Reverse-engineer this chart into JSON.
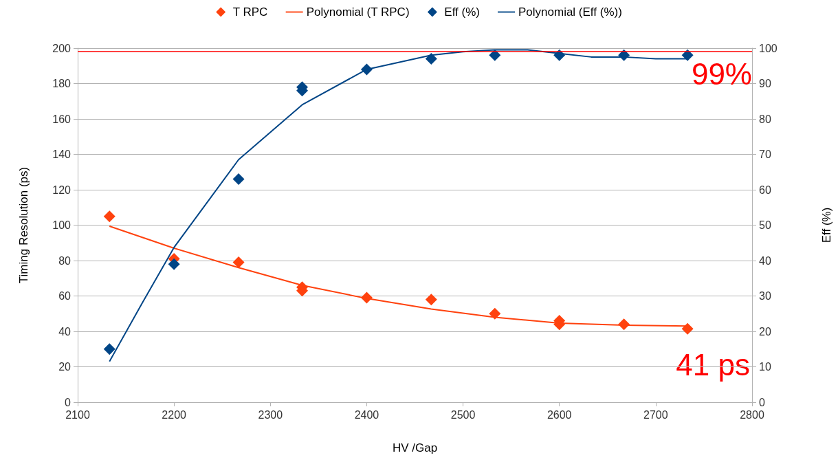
{
  "chart_data": {
    "type": "scatter",
    "xlabel": "HV /Gap",
    "ylabel": "Timing Resolution (ps)",
    "y2label": "Eff (%)",
    "xlim": [
      2100,
      2800
    ],
    "xticks": [
      2100,
      2200,
      2300,
      2400,
      2500,
      2600,
      2700,
      2800
    ],
    "ylim": [
      0,
      200
    ],
    "yticks": [
      0,
      20,
      40,
      60,
      80,
      100,
      120,
      140,
      160,
      180,
      200
    ],
    "y2lim": [
      0,
      100
    ],
    "y2ticks": [
      0,
      10,
      20,
      30,
      40,
      50,
      60,
      70,
      80,
      90,
      100
    ],
    "grid": "y",
    "legend": "top",
    "series": [
      {
        "name": "T RPC",
        "marker": "diamond",
        "color": "#ff420e",
        "x": [
          2133,
          2200,
          2267,
          2333,
          2333,
          2400,
          2467,
          2533,
          2600,
          2600,
          2667,
          2733
        ],
        "values": [
          105,
          81,
          79,
          65,
          63,
          59,
          58,
          50,
          46,
          44,
          44,
          41.5
        ]
      },
      {
        "name": "Polynomial (T RPC)",
        "type": "line",
        "marker": "none",
        "color": "#ff420e",
        "x": [
          2133,
          2200,
          2267,
          2333,
          2400,
          2467,
          2533,
          2600,
          2667,
          2733
        ],
        "values": [
          99.4,
          87,
          76,
          66,
          58.6,
          52.6,
          48,
          44.7,
          43.5,
          43
        ]
      },
      {
        "name": "Eff (%)",
        "marker": "diamond",
        "axis": "y2",
        "color": "#004586",
        "x": [
          2133,
          2200,
          2267,
          2333,
          2333,
          2400,
          2467,
          2533,
          2600,
          2667,
          2733
        ],
        "values": [
          15,
          39,
          63,
          89,
          88,
          94,
          97,
          98,
          98,
          98,
          98
        ]
      },
      {
        "name": "Polynomial (Eff (%))",
        "type": "line",
        "marker": "none",
        "axis": "y2",
        "color": "#004586",
        "x": [
          2133,
          2167,
          2200,
          2267,
          2333,
          2400,
          2467,
          2500,
          2533,
          2567,
          2600,
          2633,
          2667,
          2700,
          2733
        ],
        "values": [
          11.5,
          28,
          43.7,
          68.5,
          84,
          94,
          98,
          99,
          99.5,
          99.5,
          98.5,
          97.5,
          97.5,
          97,
          97
        ]
      }
    ],
    "ref_lines": [
      {
        "axis": "y2",
        "value": 99,
        "label": "99%",
        "color": "#ff0000"
      }
    ],
    "annotations": [
      "41 ps"
    ]
  }
}
